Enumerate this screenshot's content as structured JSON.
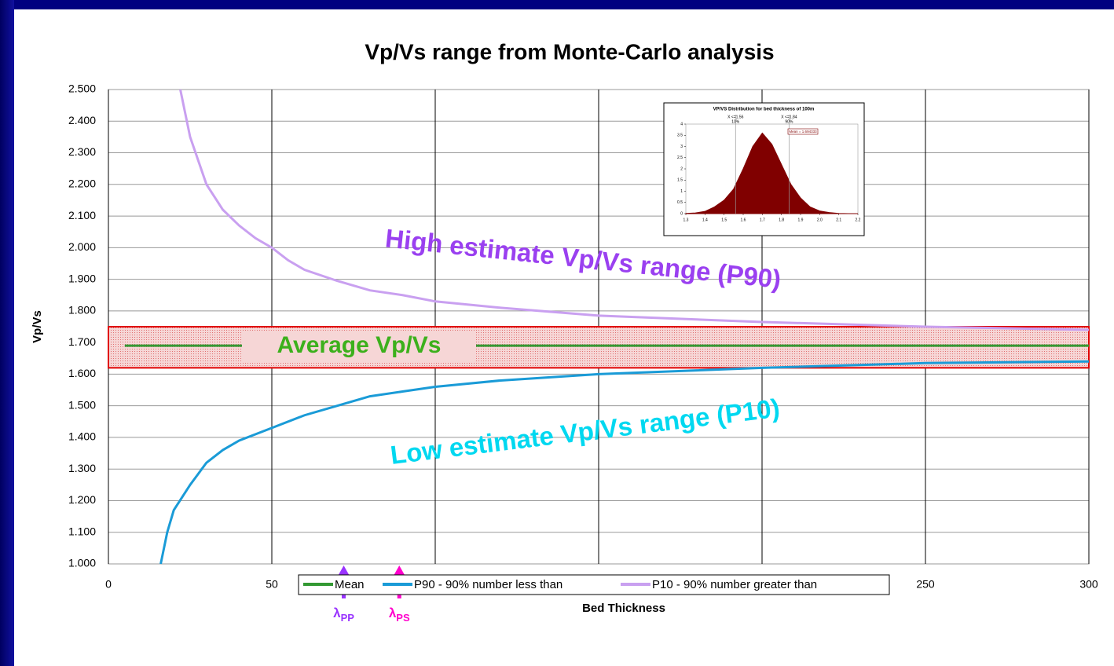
{
  "chart_data": [
    {
      "type": "line",
      "title": "Vp/Vs range from Monte-Carlo analysis",
      "x_label": "Bed Thickness",
      "y_label": "Vp/Vs",
      "xlim": [
        0,
        300
      ],
      "xticks": [
        0,
        50,
        100,
        150,
        200,
        250,
        300
      ],
      "ylim": [
        1,
        2.5
      ],
      "yticks": [
        {
          "value": 1,
          "label": "1.000"
        },
        {
          "value": 1.1,
          "label": "1.100"
        },
        {
          "value": 1.2,
          "label": "1.200"
        },
        {
          "value": 1.3,
          "label": "1.300"
        },
        {
          "value": 1.4,
          "label": "1.400"
        },
        {
          "value": 1.5,
          "label": "1.500"
        },
        {
          "value": 1.6,
          "label": "1.600"
        },
        {
          "value": 1.7,
          "label": "1.700"
        },
        {
          "value": 1.8,
          "label": "1.800"
        },
        {
          "value": 1.9,
          "label": "1.900"
        },
        {
          "value": 2,
          "label": "2.000"
        },
        {
          "value": 2.1,
          "label": "2.100"
        },
        {
          "value": 2.2,
          "label": "2.200"
        },
        {
          "value": 2.3,
          "label": "2.300"
        },
        {
          "value": 2.4,
          "label": "2.400"
        },
        {
          "value": 2.5,
          "label": "2.500"
        }
      ],
      "grid": true,
      "legend": "bottom",
      "series": [
        {
          "name": "Mean",
          "color": "#339933",
          "x": [
            5,
            300
          ],
          "values": [
            1.69,
            1.69
          ]
        },
        {
          "name": "P90 - 90% number less than",
          "color": "#1a9bd7",
          "x": [
            16,
            18,
            20,
            25,
            30,
            35,
            40,
            50,
            60,
            70,
            80,
            90,
            100,
            120,
            150,
            200,
            250,
            300
          ],
          "values": [
            1.0,
            1.1,
            1.17,
            1.25,
            1.32,
            1.36,
            1.39,
            1.43,
            1.47,
            1.5,
            1.53,
            1.545,
            1.56,
            1.58,
            1.6,
            1.62,
            1.635,
            1.64
          ]
        },
        {
          "name": "P10 - 90% number greater than",
          "color": "#c9a0f0",
          "x": [
            22,
            25,
            30,
            35,
            40,
            45,
            50,
            55,
            60,
            70,
            80,
            90,
            100,
            120,
            150,
            200,
            250,
            300
          ],
          "values": [
            2.5,
            2.35,
            2.2,
            2.12,
            2.07,
            2.03,
            2.0,
            1.96,
            1.93,
            1.895,
            1.865,
            1.85,
            1.83,
            1.81,
            1.785,
            1.765,
            1.75,
            1.74
          ]
        }
      ],
      "band": [
        1.62,
        1.75
      ],
      "annotations": [
        "High estimate Vp/Vs range (P90)",
        "Low estimate Vp/Vs range (P10)",
        "Average Vp/Vs"
      ],
      "arrows": [
        {
          "x": 72,
          "text": "λ",
          "sub": "PP",
          "color": "#9933ff"
        },
        {
          "x": 89,
          "text": "λ",
          "sub": "PS",
          "color": "#ff00cc"
        }
      ]
    },
    {
      "type": "area",
      "title": "VP/VS Distribution for bed thickness of 100m",
      "color": "#800000",
      "xlim": [
        1.3,
        2.2
      ],
      "xticks": [
        1.3,
        1.4,
        1.5,
        1.6,
        1.7,
        1.8,
        1.9,
        {
          "value": 2,
          "label": "2.0"
        },
        2.1,
        2.2
      ],
      "ylim": [
        0,
        4
      ],
      "yticks": [
        0,
        0.5,
        1,
        1.5,
        2,
        2.5,
        3,
        3.5,
        4
      ],
      "x": [
        1.3,
        1.35,
        1.4,
        1.45,
        1.5,
        1.55,
        1.6,
        1.65,
        1.7,
        1.75,
        1.8,
        1.85,
        1.9,
        1.95,
        2,
        2.05,
        2.1,
        2.15,
        2.2
      ],
      "values": [
        0.01,
        0.03,
        0.1,
        0.3,
        0.6,
        1.1,
        2.0,
        3.0,
        3.6,
        3.1,
        2.2,
        1.3,
        0.7,
        0.3,
        0.12,
        0.05,
        0.01,
        0,
        0
      ],
      "markers": [
        {
          "value": 1.56,
          "label": "X <=1.56",
          "pct": "10%"
        },
        {
          "value": 1.84,
          "label": "X <=1.84",
          "pct": "90%"
        }
      ],
      "mean_label": "Mean = 1.694333"
    }
  ]
}
